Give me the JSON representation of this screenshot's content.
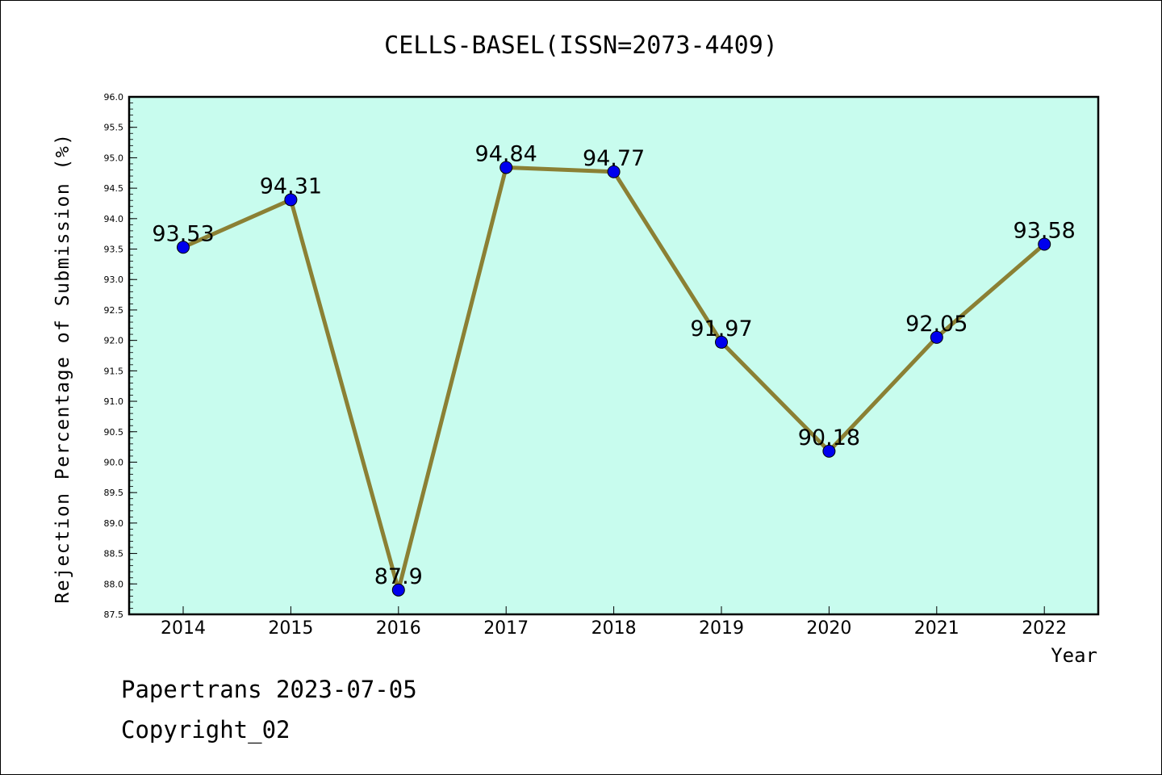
{
  "chart_data": {
    "type": "line",
    "title": "CELLS-BASEL(ISSN=2073-4409)",
    "xlabel": "Year",
    "ylabel": "Rejection Percentage of Submission (%)",
    "categories": [
      "2014",
      "2015",
      "2016",
      "2017",
      "2018",
      "2019",
      "2020",
      "2021",
      "2022"
    ],
    "values": [
      93.53,
      94.31,
      87.9,
      94.84,
      94.77,
      91.97,
      90.18,
      92.05,
      93.58
    ],
    "data_labels": [
      "93.53",
      "94.31",
      "87.9",
      "94.84",
      "94.77",
      "91.97",
      "90.18",
      "92.05",
      "93.58"
    ],
    "ylim": [
      87.5,
      96.0
    ],
    "yticks": [
      "87.5",
      "88.0",
      "88.5",
      "89.0",
      "89.5",
      "90.0",
      "90.5",
      "91.0",
      "91.5",
      "92.0",
      "92.5",
      "93.0",
      "93.5",
      "94.0",
      "94.5",
      "95.0",
      "95.5",
      "96.0"
    ],
    "grid": false,
    "colors": {
      "plot_background": "#c8fcee",
      "line": "#8b8034",
      "marker": "#0000ee"
    }
  },
  "footer": {
    "line1": "Papertrans 2023-07-05",
    "line2": "Copyright_02"
  }
}
